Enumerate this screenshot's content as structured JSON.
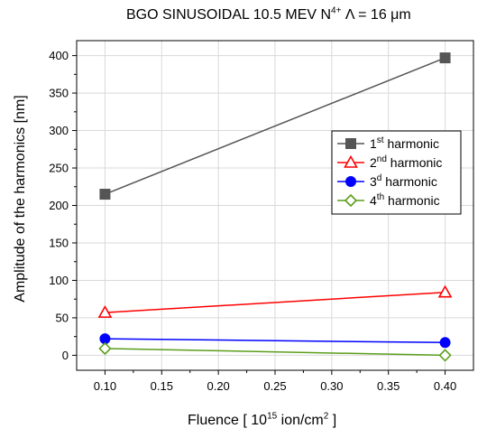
{
  "chart_data": {
    "type": "line",
    "title": {
      "prefix": "BGO SINUSOIDAL 10.5 MEV N",
      "sup": "4+",
      "suffix": " Λ = 16 μm"
    },
    "xlabel": {
      "prefix": "Fluence [ 10",
      "sup": "15",
      "mid": " ion/cm",
      "sup2": "2",
      "suffix": " ]"
    },
    "ylabel": "Amplitude of the harmonics [nm]",
    "x": [
      0.1,
      0.4
    ],
    "xlim": [
      0.075,
      0.425
    ],
    "ylim": [
      -20,
      420
    ],
    "xticks": [
      "0.10",
      "0.15",
      "0.20",
      "0.25",
      "0.30",
      "0.35",
      "0.40"
    ],
    "yticks": [
      "0",
      "50",
      "100",
      "150",
      "200",
      "250",
      "300",
      "350",
      "400"
    ],
    "grid": true,
    "legend_position": "right-middle",
    "series": [
      {
        "name": "1",
        "name_sup": "st",
        "name_suffix": " harmonic",
        "values": [
          215,
          397
        ],
        "color": "#555555",
        "marker": "square-filled"
      },
      {
        "name": "2",
        "name_sup": "nd",
        "name_suffix": " harmonic",
        "values": [
          57,
          84
        ],
        "color": "#ff0000",
        "marker": "triangle-open"
      },
      {
        "name": "3",
        "name_sup": "d",
        "name_suffix": " harmonic",
        "values": [
          22,
          17
        ],
        "color": "#0000ff",
        "marker": "circle-filled"
      },
      {
        "name": "4",
        "name_sup": "th",
        "name_suffix": " harmonic",
        "values": [
          9,
          0
        ],
        "color": "#5a9e1a",
        "marker": "diamond-open"
      }
    ]
  }
}
